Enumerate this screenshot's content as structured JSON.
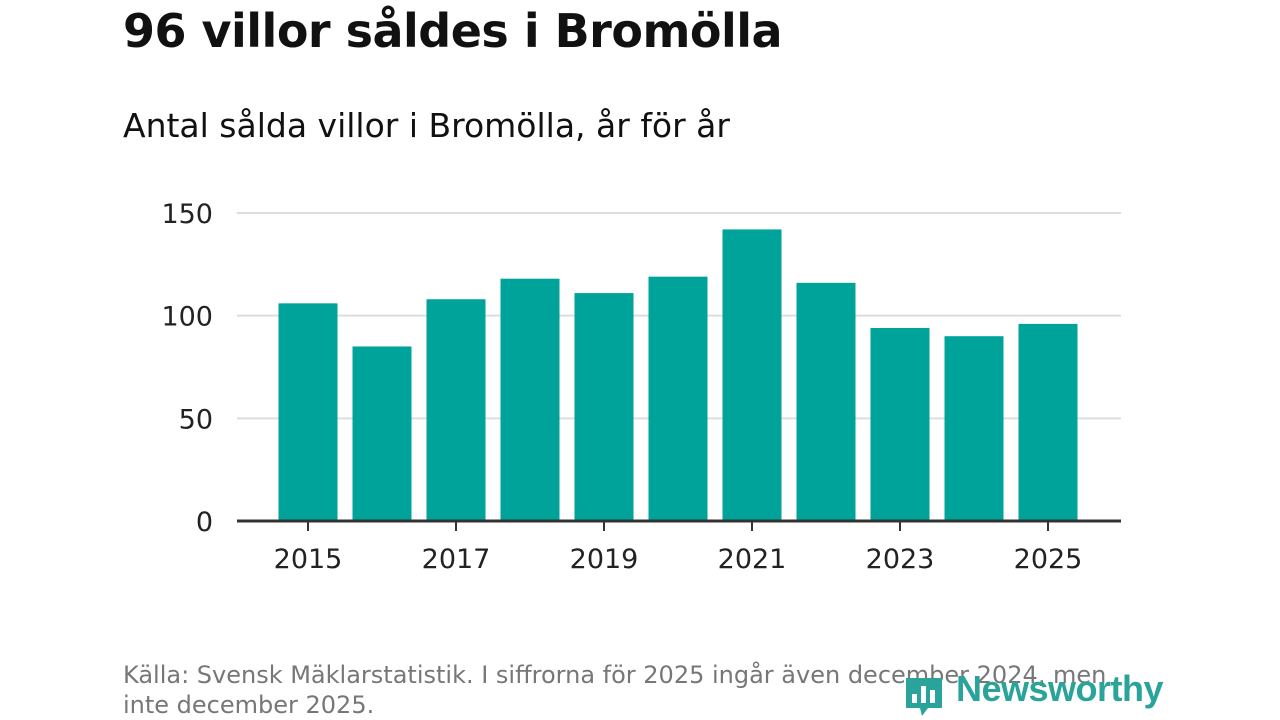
{
  "header": {
    "title": "96 villor såldes i Bromölla",
    "subtitle": "Antal sålda villor i Bromölla, år för år"
  },
  "footer": {
    "source": "Källa: Svensk Mäklarstatistik. I siffrorna för 2025 ingår även december 2024, men inte december 2025.",
    "logo_text": "Newsworthy"
  },
  "colors": {
    "bar": "#00a39a",
    "grid": "#dddddd",
    "axis": "#333333",
    "logo": "#2aa39a"
  },
  "chart_data": {
    "type": "bar",
    "categories": [
      "2015",
      "2016",
      "2017",
      "2018",
      "2019",
      "2020",
      "2021",
      "2022",
      "2023",
      "2024",
      "2025"
    ],
    "values": [
      106,
      85,
      108,
      118,
      111,
      119,
      142,
      116,
      94,
      90,
      96
    ],
    "x_tick_labels": [
      "2015",
      "2017",
      "2019",
      "2021",
      "2023",
      "2025"
    ],
    "y_ticks": [
      0,
      50,
      100,
      150
    ],
    "ylim": [
      0,
      150
    ],
    "xlabel": "",
    "ylabel": "",
    "grid": true,
    "legend": "none"
  }
}
